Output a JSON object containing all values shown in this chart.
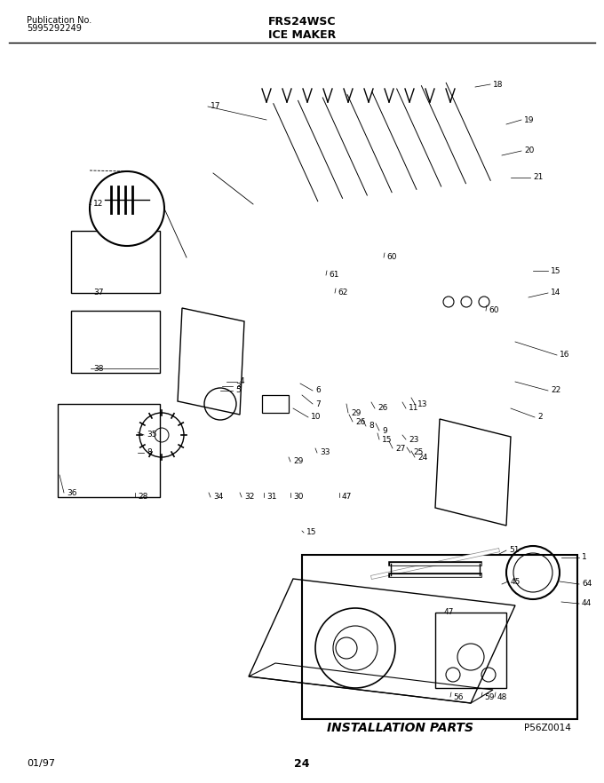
{
  "title_center": "FRS24WSC",
  "subtitle_center": "ICE MAKER",
  "pub_label": "Publication No.",
  "pub_number": "5995292249",
  "footer_left": "01/97",
  "footer_center": "24",
  "install_parts_label": "INSTALLATION PARTS",
  "install_parts_code": "P56Z0014",
  "bg_color": "#ffffff",
  "line_color": "#000000",
  "fig_width": 6.8,
  "fig_height": 8.82,
  "dpi": 100
}
